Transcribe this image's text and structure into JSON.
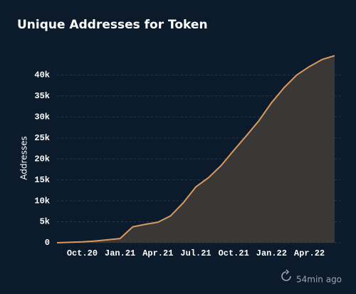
{
  "chart_data": {
    "type": "area",
    "title": "Unique Addresses for Token",
    "y_label": "Addresses",
    "footer": "54min ago",
    "x": [
      "2020-08",
      "2020-09",
      "2020-10",
      "2020-11",
      "2020-12",
      "2021-01",
      "2021-02",
      "2021-03",
      "2021-04",
      "2021-05",
      "2021-06",
      "2021-07",
      "2021-08",
      "2021-09",
      "2021-10",
      "2021-11",
      "2021-12",
      "2022-01",
      "2022-02",
      "2022-03",
      "2022-04",
      "2022-05",
      "2022-06"
    ],
    "values": [
      0,
      100,
      200,
      400,
      700,
      1000,
      3800,
      4400,
      4900,
      6400,
      9500,
      13300,
      15500,
      18400,
      22000,
      25500,
      29100,
      33400,
      37000,
      40000,
      42000,
      43700,
      44600
    ],
    "color": "#d89a60",
    "fill_color": "#3a3836",
    "xlim": [
      "2020-08",
      "2022-06"
    ],
    "xticks": [
      {
        "value": "2020-10",
        "label": "Oct.20"
      },
      {
        "value": "2021-01",
        "label": "Jan.21"
      },
      {
        "value": "2021-04",
        "label": "Apr.21"
      },
      {
        "value": "2021-07",
        "label": "Jul.21"
      },
      {
        "value": "2021-10",
        "label": "Oct.21"
      },
      {
        "value": "2022-01",
        "label": "Jan.22"
      },
      {
        "value": "2022-04",
        "label": "Apr.22"
      }
    ],
    "ylim": [
      0,
      46000
    ],
    "yticks": [
      0,
      {
        "value": 5000,
        "label": "5k"
      },
      {
        "value": 10000,
        "label": "10k"
      },
      {
        "value": 15000,
        "label": "15k"
      },
      {
        "value": 20000,
        "label": "20k"
      },
      {
        "value": 25000,
        "label": "25k"
      },
      {
        "value": 30000,
        "label": "30k"
      },
      {
        "value": 35000,
        "label": "35k"
      },
      {
        "value": 40000,
        "label": "40k"
      }
    ],
    "grid": true
  }
}
